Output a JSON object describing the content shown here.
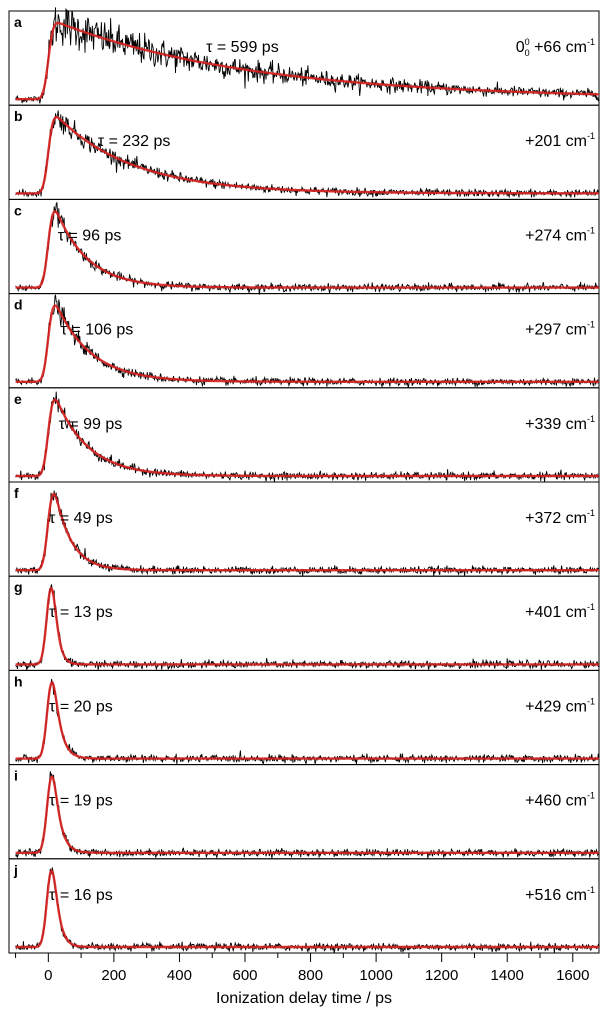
{
  "chart_data": {
    "type": "line",
    "xlabel": "Ionization delay time / ps",
    "xlim": [
      -120,
      1680
    ],
    "x_ticks": [
      0,
      200,
      400,
      600,
      800,
      1000,
      1200,
      1400,
      1600
    ],
    "x_minor_step": 100,
    "grid": false,
    "colors": {
      "data": "#000000",
      "fit": "#d62020"
    },
    "panels": [
      {
        "letter": "a",
        "tau_text": "τ = 599 ps",
        "tau_ps": 599,
        "energy_prefix": "0",
        "energy_sup": "0",
        "energy_sub": "0",
        "energy_text": " +66 cm",
        "energy_unit_sup": "-1",
        "baseline_offset": 0.08,
        "noise": 0.12
      },
      {
        "letter": "b",
        "tau_text": "τ = 232 ps",
        "tau_ps": 232,
        "energy_text": "+201 cm",
        "energy_unit_sup": "-1",
        "baseline_offset": 0.0,
        "noise": 0.05
      },
      {
        "letter": "c",
        "tau_text": "τ = 96 ps",
        "tau_ps": 96,
        "energy_text": "+274 cm",
        "energy_unit_sup": "-1",
        "baseline_offset": 0.0,
        "noise": 0.04
      },
      {
        "letter": "d",
        "tau_text": "τ = 106 ps",
        "tau_ps": 106,
        "energy_text": "+297 cm",
        "energy_unit_sup": "-1",
        "baseline_offset": 0.0,
        "noise": 0.05
      },
      {
        "letter": "e",
        "tau_text": "τ = 99 ps",
        "tau_ps": 99,
        "energy_text": "+339 cm",
        "energy_unit_sup": "-1",
        "baseline_offset": 0.0,
        "noise": 0.05
      },
      {
        "letter": "f",
        "tau_text": "τ = 49 ps",
        "tau_ps": 49,
        "energy_text": "+372 cm",
        "energy_unit_sup": "-1",
        "baseline_offset": 0.02,
        "noise": 0.06
      },
      {
        "letter": "g",
        "tau_text": "τ = 13 ps",
        "tau_ps": 13,
        "energy_text": "+401 cm",
        "energy_unit_sup": "-1",
        "baseline_offset": 0.0,
        "noise": 0.05
      },
      {
        "letter": "h",
        "tau_text": "τ = 20 ps",
        "tau_ps": 20,
        "energy_text": "+429 cm",
        "energy_unit_sup": "-1",
        "baseline_offset": 0.0,
        "noise": 0.03
      },
      {
        "letter": "i",
        "tau_text": "τ = 19 ps",
        "tau_ps": 19,
        "energy_text": "+460 cm",
        "energy_unit_sup": "-1",
        "baseline_offset": 0.0,
        "noise": 0.03
      },
      {
        "letter": "j",
        "tau_text": "τ = 16 ps",
        "tau_ps": 16,
        "energy_text": "+516 cm",
        "energy_unit_sup": "-1",
        "baseline_offset": 0.0,
        "noise": 0.03
      }
    ]
  }
}
